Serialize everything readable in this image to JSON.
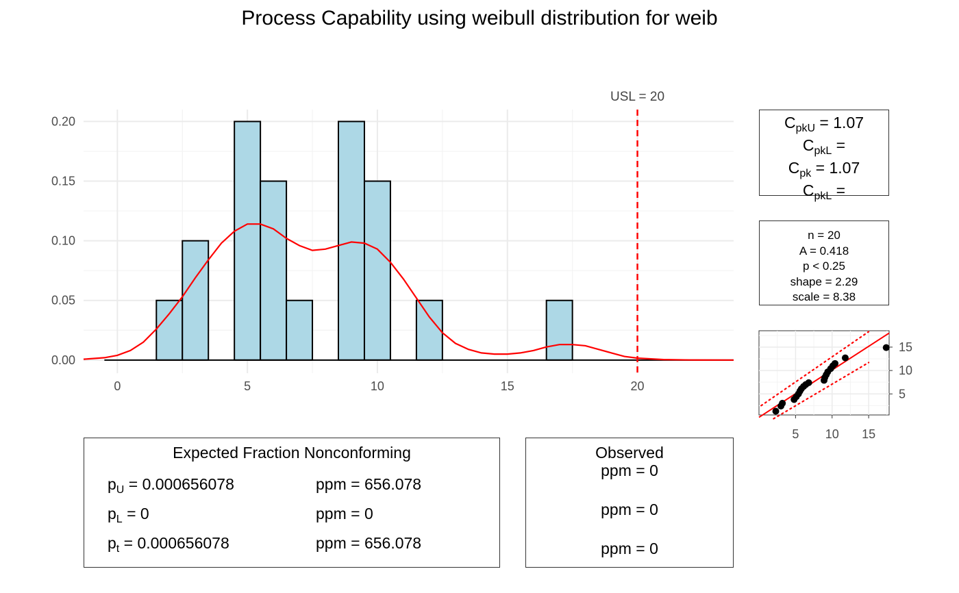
{
  "title": "Process Capability using weibull distribution for weib",
  "capability": {
    "cpku_label": "C",
    "cpku_sub": "pkU",
    "cpku_value": " = 1.07",
    "cpkl_label": "C",
    "cpkl_sub": "pkL",
    "cpkl_value": " = ",
    "cpk_label": "C",
    "cpk_sub": "pk",
    "cpk_value": " = 1.07",
    "cpkl2_label": "C",
    "cpkl2_sub": "pkL",
    "cpkl2_value": " = "
  },
  "stats": {
    "n": "n = 20",
    "A": "A = 0.418",
    "p": "p < 0.25",
    "shape": "shape = 2.29",
    "scale": "scale = 8.38"
  },
  "expected": {
    "title": "Expected Fraction Nonconforming",
    "rows": [
      {
        "label": "p",
        "sub": "U",
        "value": " = 0.000656078",
        "ppm": "ppm = 656.078"
      },
      {
        "label": "p",
        "sub": "L",
        "value": " = 0",
        "ppm": "ppm = 0"
      },
      {
        "label": "p",
        "sub": "t",
        "value": " = 0.000656078",
        "ppm": "ppm = 656.078"
      }
    ]
  },
  "observed": {
    "title": "Observed",
    "rows": [
      "ppm = 0",
      "ppm = 0",
      "ppm = 0"
    ]
  },
  "colors": {
    "bar_fill": "#add8e6",
    "bar_stroke": "#000000",
    "density_line": "#ff0000",
    "usl_line": "#ff0000",
    "grid": "#ebebeb"
  },
  "chart_data": [
    {
      "type": "bar",
      "subtype": "histogram",
      "bins": [
        {
          "x0": 1.5,
          "x1": 2.5,
          "value": 0.05
        },
        {
          "x0": 2.5,
          "x1": 3.5,
          "value": 0.1
        },
        {
          "x0": 4.5,
          "x1": 5.5,
          "value": 0.2
        },
        {
          "x0": 5.5,
          "x1": 6.5,
          "value": 0.15
        },
        {
          "x0": 6.5,
          "x1": 7.5,
          "value": 0.05
        },
        {
          "x0": 8.5,
          "x1": 9.5,
          "value": 0.2
        },
        {
          "x0": 9.5,
          "x1": 10.5,
          "value": 0.15
        },
        {
          "x0": 11.5,
          "x1": 12.5,
          "value": 0.05
        },
        {
          "x0": 16.5,
          "x1": 17.5,
          "value": 0.05
        }
      ],
      "density": {
        "x": [
          -1.3,
          -0.5,
          0,
          0.5,
          1,
          1.5,
          2,
          2.5,
          3,
          3.5,
          4,
          4.5,
          5,
          5.5,
          6,
          6.5,
          7,
          7.5,
          8,
          8.5,
          9,
          9.5,
          10,
          10.5,
          11,
          11.5,
          12,
          12.5,
          13,
          13.5,
          14,
          14.5,
          15,
          15.5,
          16,
          16.5,
          17,
          17.5,
          18,
          18.5,
          19,
          19.5,
          20,
          21,
          22,
          23.7
        ],
        "y": [
          0.0007,
          0.002,
          0.004,
          0.008,
          0.015,
          0.026,
          0.039,
          0.053,
          0.069,
          0.084,
          0.098,
          0.108,
          0.114,
          0.114,
          0.11,
          0.102,
          0.096,
          0.092,
          0.093,
          0.096,
          0.099,
          0.098,
          0.093,
          0.082,
          0.068,
          0.052,
          0.036,
          0.023,
          0.014,
          0.009,
          0.006,
          0.005,
          0.005,
          0.006,
          0.008,
          0.011,
          0.013,
          0.013,
          0.012,
          0.009,
          0.006,
          0.003,
          0.0016,
          0.0004,
          0.0001,
          0.0
        ]
      },
      "zero_line": {
        "x0": -0.5,
        "x1": 23.7
      },
      "usl": {
        "value": 20,
        "label": "USL = 20"
      },
      "xlim": [
        -1.3,
        23.7
      ],
      "ylim": [
        -0.011,
        0.21
      ],
      "xticks": [
        0,
        5,
        10,
        15,
        20
      ],
      "yticks": [
        0.0,
        0.05,
        0.1,
        0.15,
        0.2
      ],
      "yticklabels": [
        "0.00",
        "0.05",
        "0.10",
        "0.15",
        "0.20"
      ],
      "grid": true
    },
    {
      "type": "scatter",
      "subtype": "probability-plot",
      "points": [
        {
          "x": 2.3,
          "y": 1.3
        },
        {
          "x": 3.0,
          "y": 2.4
        },
        {
          "x": 3.2,
          "y": 3.0
        },
        {
          "x": 4.8,
          "y": 3.8
        },
        {
          "x": 5.1,
          "y": 4.4
        },
        {
          "x": 5.4,
          "y": 5.0
        },
        {
          "x": 5.6,
          "y": 5.6
        },
        {
          "x": 5.8,
          "y": 6.1
        },
        {
          "x": 6.1,
          "y": 6.6
        },
        {
          "x": 6.4,
          "y": 7.0
        },
        {
          "x": 6.8,
          "y": 7.4
        },
        {
          "x": 8.9,
          "y": 7.9
        },
        {
          "x": 9.0,
          "y": 8.5
        },
        {
          "x": 9.2,
          "y": 9.1
        },
        {
          "x": 9.4,
          "y": 9.7
        },
        {
          "x": 9.8,
          "y": 10.4
        },
        {
          "x": 10.1,
          "y": 11.0
        },
        {
          "x": 10.4,
          "y": 11.5
        },
        {
          "x": 11.8,
          "y": 12.7
        },
        {
          "x": 17.4,
          "y": 14.9
        }
      ],
      "fit_line": {
        "x": [
          0,
          17.8
        ],
        "y": [
          0.0,
          18.0
        ]
      },
      "band_upper": {
        "x": [
          0.3,
          15.0
        ],
        "y": [
          2.5,
          18.3
        ]
      },
      "band_lower": {
        "x": [
          2.0,
          15.0
        ],
        "y": [
          -0.3,
          11.7
        ]
      },
      "xlim": [
        0,
        17.8
      ],
      "ylim": [
        0.5,
        18.5
      ],
      "xticks": [
        5,
        10,
        15
      ],
      "yticks": [
        5,
        10,
        15
      ],
      "grid": true
    }
  ]
}
